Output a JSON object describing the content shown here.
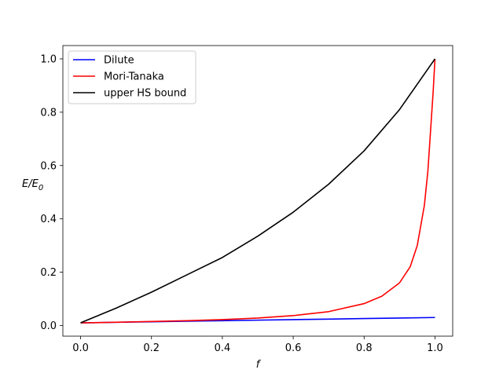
{
  "chart_data": {
    "type": "line",
    "xlabel": "f",
    "ylabel": {
      "base": "E/E",
      "subscript": "0"
    },
    "xlim": [
      -0.05,
      1.05
    ],
    "ylim": [
      -0.04,
      1.05
    ],
    "xticks": [
      "0.0",
      "0.2",
      "0.4",
      "0.6",
      "0.8",
      "1.0"
    ],
    "yticks": [
      "0.0",
      "0.2",
      "0.4",
      "0.6",
      "0.8",
      "1.0"
    ],
    "grid": false,
    "legend_position": "top-left",
    "series": [
      {
        "name": "Dilute",
        "color": "#0000ff",
        "x": [
          0,
          0.1,
          0.2,
          0.3,
          0.4,
          0.5,
          0.6,
          0.7,
          0.8,
          0.9,
          1.0
        ],
        "y": [
          0.01,
          0.012,
          0.014,
          0.016,
          0.018,
          0.02,
          0.022,
          0.024,
          0.026,
          0.028,
          0.03
        ]
      },
      {
        "name": "Mori-Tanaka",
        "color": "#ff0000",
        "x": [
          0,
          0.1,
          0.2,
          0.3,
          0.4,
          0.5,
          0.6,
          0.7,
          0.8,
          0.85,
          0.9,
          0.93,
          0.95,
          0.97,
          0.98,
          0.99,
          0.995,
          1.0
        ],
        "y": [
          0.01,
          0.012,
          0.015,
          0.018,
          0.022,
          0.028,
          0.037,
          0.052,
          0.082,
          0.11,
          0.16,
          0.22,
          0.3,
          0.45,
          0.58,
          0.78,
          0.88,
          1.0
        ]
      },
      {
        "name": "upper HS bound",
        "color": "#000000",
        "x": [
          0,
          0.1,
          0.2,
          0.3,
          0.4,
          0.5,
          0.6,
          0.7,
          0.8,
          0.9,
          1.0
        ],
        "y": [
          0.01,
          0.065,
          0.125,
          0.19,
          0.255,
          0.335,
          0.425,
          0.53,
          0.655,
          0.81,
          1.0
        ]
      }
    ]
  }
}
